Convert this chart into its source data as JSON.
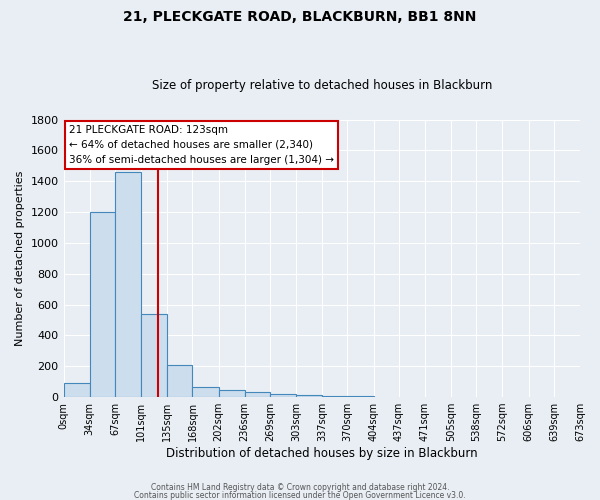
{
  "title": "21, PLECKGATE ROAD, BLACKBURN, BB1 8NN",
  "subtitle": "Size of property relative to detached houses in Blackburn",
  "xlabel": "Distribution of detached houses by size in Blackburn",
  "ylabel": "Number of detached properties",
  "bar_color": "#ccdded",
  "bar_edge_color": "#4488bb",
  "bin_edges": [
    0,
    34,
    67,
    101,
    135,
    168,
    202,
    236,
    269,
    303,
    337,
    370,
    404,
    437,
    471,
    505,
    538,
    572,
    606,
    639,
    673
  ],
  "bar_heights": [
    90,
    1200,
    1460,
    540,
    205,
    65,
    45,
    30,
    20,
    15,
    10,
    5,
    0,
    0,
    0,
    0,
    0,
    0,
    0,
    0
  ],
  "xtick_labels": [
    "0sqm",
    "34sqm",
    "67sqm",
    "101sqm",
    "135sqm",
    "168sqm",
    "202sqm",
    "236sqm",
    "269sqm",
    "303sqm",
    "337sqm",
    "370sqm",
    "404sqm",
    "437sqm",
    "471sqm",
    "505sqm",
    "538sqm",
    "572sqm",
    "606sqm",
    "639sqm",
    "673sqm"
  ],
  "vline_x": 123,
  "vline_color": "#cc0000",
  "ylim": [
    0,
    1800
  ],
  "yticks": [
    0,
    200,
    400,
    600,
    800,
    1000,
    1200,
    1400,
    1600,
    1800
  ],
  "annotation_title": "21 PLECKGATE ROAD: 123sqm",
  "annotation_line1": "← 64% of detached houses are smaller (2,340)",
  "annotation_line2": "36% of semi-detached houses are larger (1,304) →",
  "annotation_box_color": "#ffffff",
  "annotation_box_edge": "#cc0000",
  "footer1": "Contains HM Land Registry data © Crown copyright and database right 2024.",
  "footer2": "Contains public sector information licensed under the Open Government Licence v3.0.",
  "background_color": "#e8eef4",
  "plot_bg_color": "#e8eef4",
  "grid_color": "#ffffff"
}
